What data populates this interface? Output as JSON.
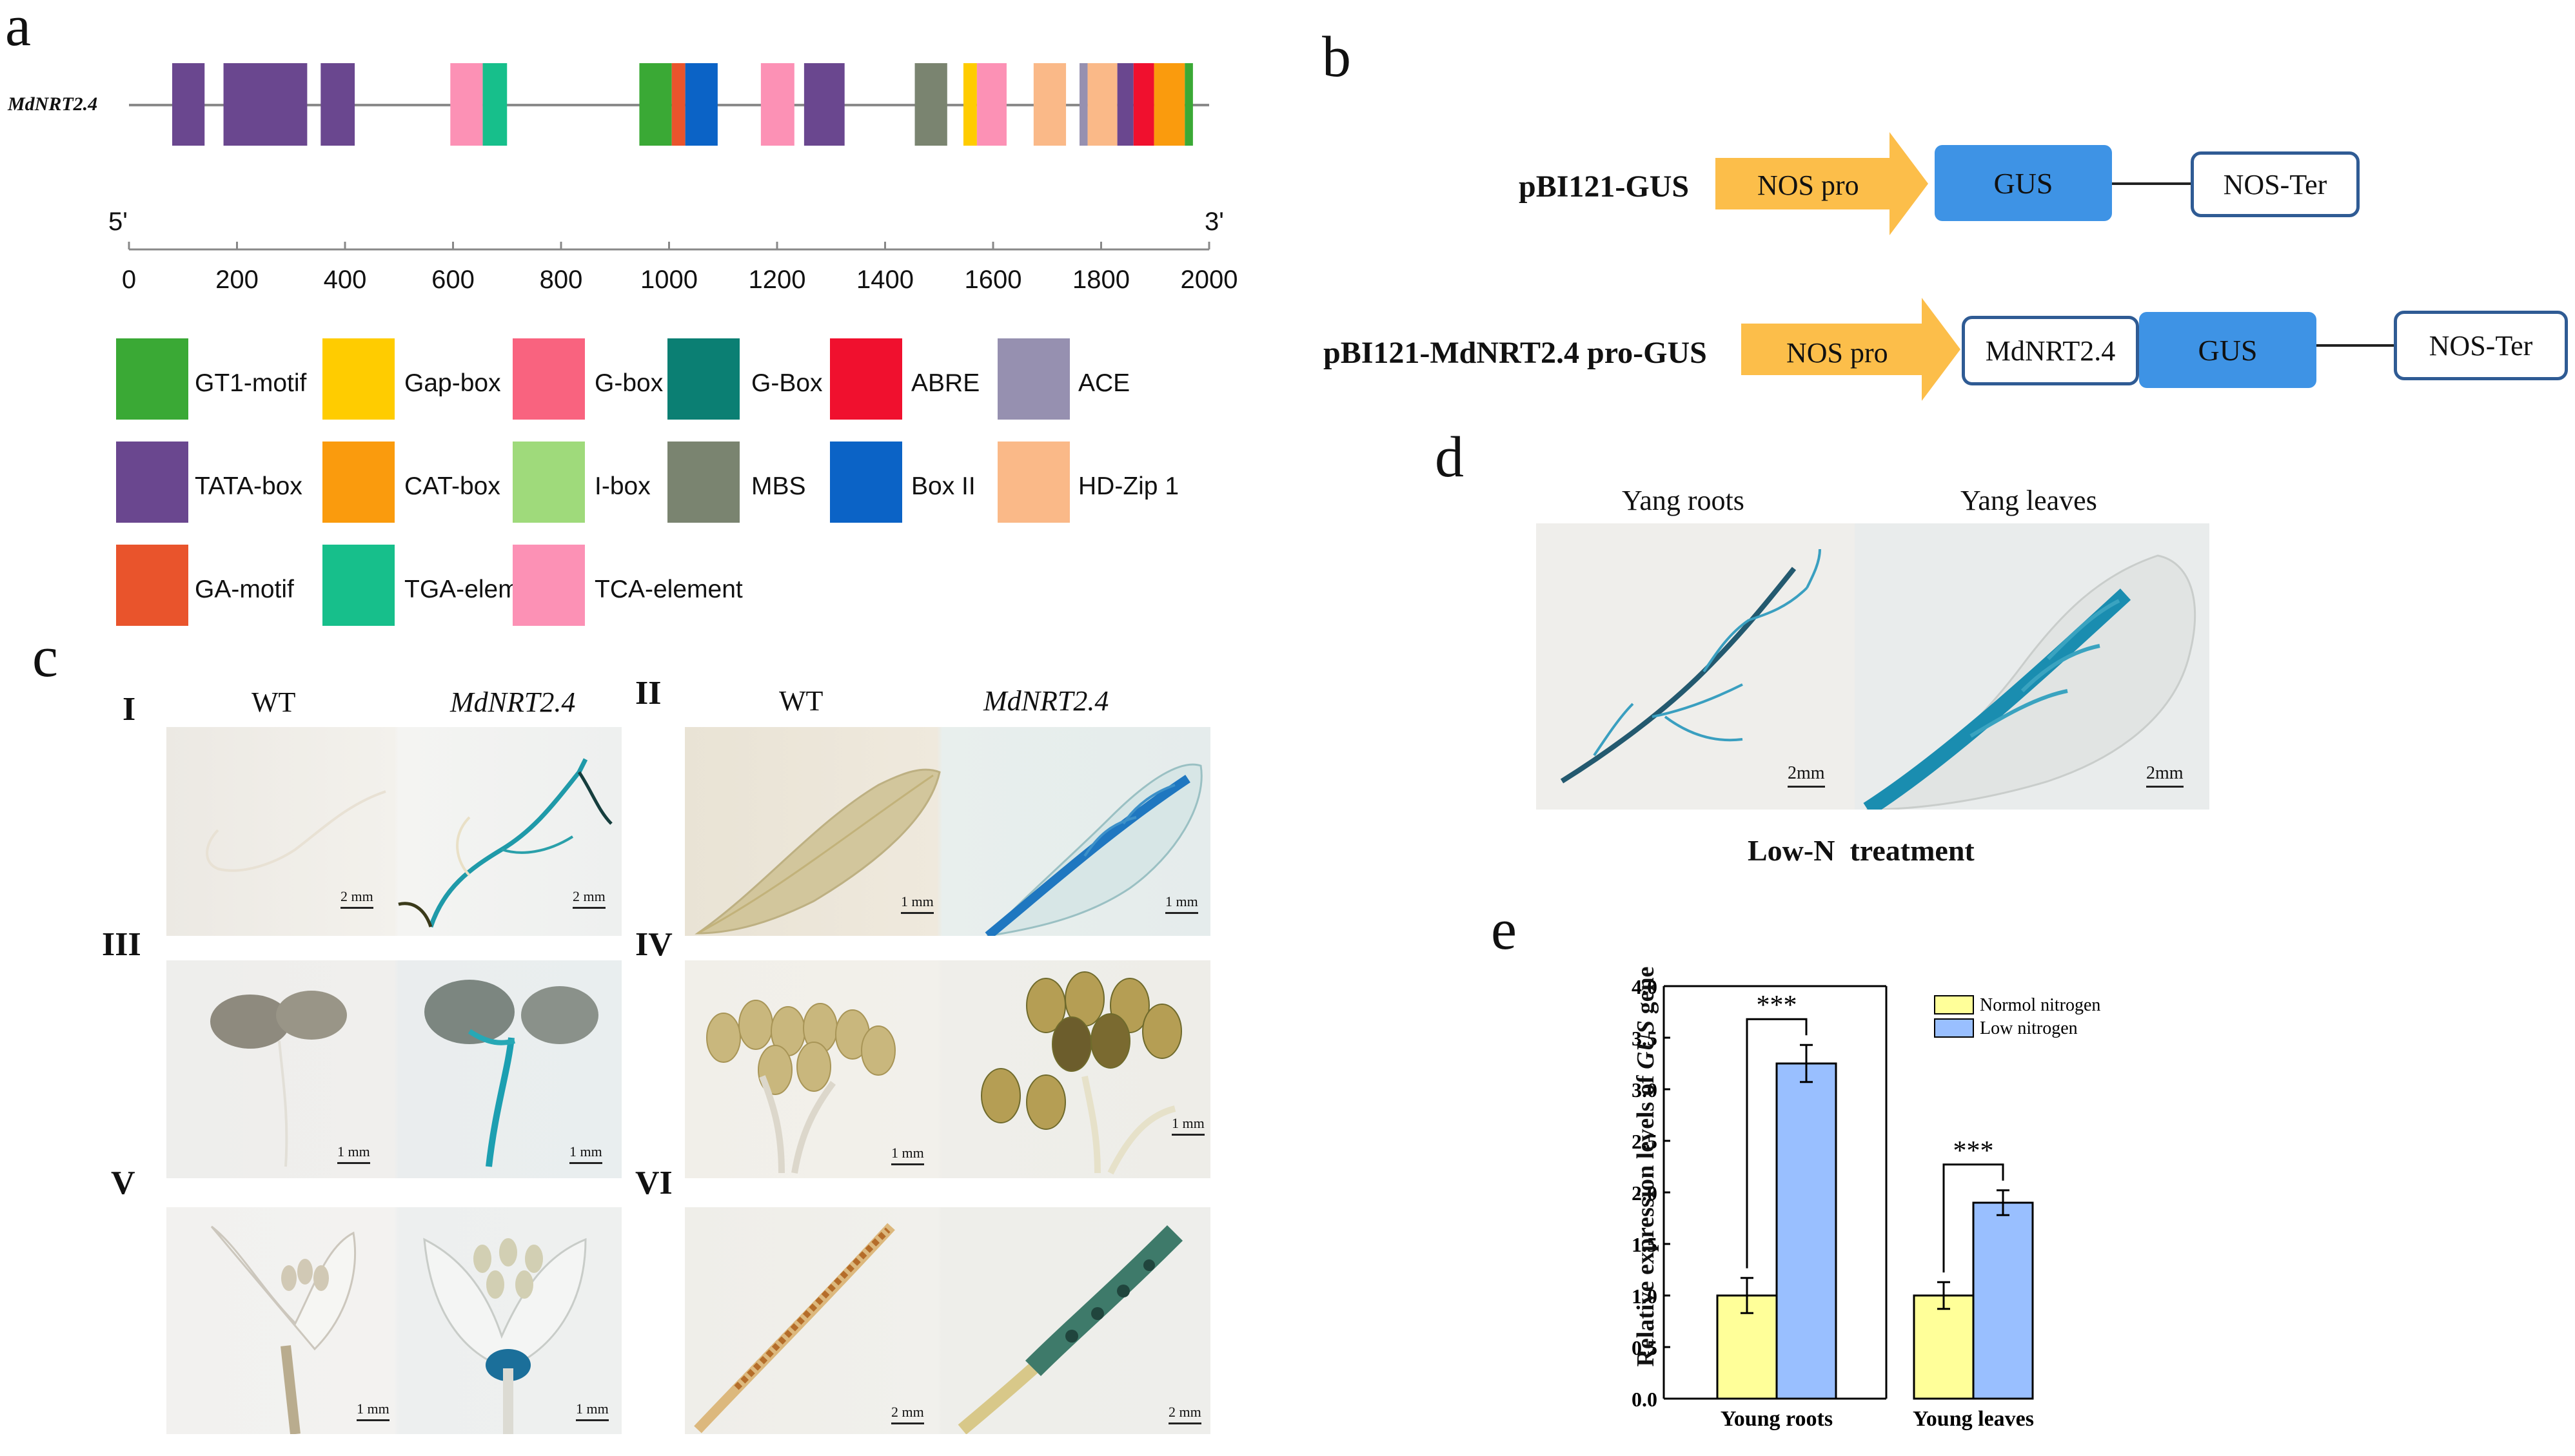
{
  "panel_a": {
    "label": "a",
    "gene_label": "MdNRT2.4",
    "five_prime": "5'",
    "three_prime": "3'",
    "axis_ticks": [
      "0",
      "200",
      "400",
      "600",
      "800",
      "1000",
      "1200",
      "1400",
      "1600",
      "1800",
      "2000"
    ],
    "legend": [
      {
        "name": "GT1-motif",
        "color": "#3aa935"
      },
      {
        "name": "Gap-box",
        "color": "#ffcc00"
      },
      {
        "name": "G-box",
        "color": "#f9637f"
      },
      {
        "name": "G-Box",
        "color": "#0b7f73"
      },
      {
        "name": "ABRE",
        "color": "#f0102e"
      },
      {
        "name": "ACE",
        "color": "#9690b0"
      },
      {
        "name": "TATA-box",
        "color": "#6a478f"
      },
      {
        "name": "CAT-box",
        "color": "#fa9b0d"
      },
      {
        "name": "I-box",
        "color": "#9fda7b"
      },
      {
        "name": "MBS",
        "color": "#7a8470"
      },
      {
        "name": "Box II",
        "color": "#0b63c6"
      },
      {
        "name": "HD-Zip 1",
        "color": "#fab988"
      },
      {
        "name": "GA-motif",
        "color": "#e9542c"
      },
      {
        "name": "TGA-element",
        "color": "#17bf8b"
      },
      {
        "name": "TCA-element",
        "color": "#fc91b5"
      }
    ],
    "elements": [
      {
        "start": 80,
        "end": 140,
        "color": "#6a478f"
      },
      {
        "start": 175,
        "end": 330,
        "color": "#6a478f"
      },
      {
        "start": 355,
        "end": 418,
        "color": "#6a478f"
      },
      {
        "start": 595,
        "end": 655,
        "color": "#fc91b5"
      },
      {
        "start": 655,
        "end": 700,
        "color": "#17bf8b"
      },
      {
        "start": 945,
        "end": 1005,
        "color": "#3aa935"
      },
      {
        "start": 1005,
        "end": 1030,
        "color": "#e9542c"
      },
      {
        "start": 1030,
        "end": 1090,
        "color": "#0b63c6"
      },
      {
        "start": 1170,
        "end": 1232,
        "color": "#fc91b5"
      },
      {
        "start": 1250,
        "end": 1325,
        "color": "#6a478f"
      },
      {
        "start": 1455,
        "end": 1515,
        "color": "#7a8470"
      },
      {
        "start": 1545,
        "end": 1570,
        "color": "#ffcc00"
      },
      {
        "start": 1570,
        "end": 1625,
        "color": "#fc91b5"
      },
      {
        "start": 1675,
        "end": 1735,
        "color": "#fab988"
      },
      {
        "start": 1760,
        "end": 1775,
        "color": "#9690b0"
      },
      {
        "start": 1775,
        "end": 1830,
        "color": "#fab988"
      },
      {
        "start": 1830,
        "end": 1860,
        "color": "#6a478f"
      },
      {
        "start": 1860,
        "end": 1898,
        "color": "#f0102e"
      },
      {
        "start": 1898,
        "end": 1955,
        "color": "#fa9b0d"
      },
      {
        "start": 1955,
        "end": 1970,
        "color": "#3aa935"
      }
    ]
  },
  "panel_b": {
    "label": "b",
    "construct1": {
      "name": "pBI121-GUS",
      "promoter": "NOS pro",
      "gene": "GUS",
      "terminator": "NOS-Ter"
    },
    "construct2": {
      "name": "pBI121-MdNRT2.4 pro-GUS",
      "promoter": "NOS pro",
      "insert": "MdNRT2.4",
      "gene": "GUS",
      "terminator": "NOS-Ter"
    }
  },
  "panel_c": {
    "label": "c",
    "header_wt": "WT",
    "header_gene": "MdNRT2.4",
    "panels": [
      {
        "roman": "I",
        "scale_wt": "2 mm",
        "scale_tg": "2 mm"
      },
      {
        "roman": "II",
        "scale_wt": "1 mm",
        "scale_tg": "1 mm"
      },
      {
        "roman": "III",
        "scale_wt": "1 mm",
        "scale_tg": "1 mm"
      },
      {
        "roman": "IV",
        "scale_wt": "1 mm",
        "scale_tg": "1 mm"
      },
      {
        "roman": "V",
        "scale_wt": "1 mm",
        "scale_tg": "1 mm"
      },
      {
        "roman": "VI",
        "scale_wt": "2 mm",
        "scale_tg": "2 mm"
      }
    ]
  },
  "panel_d": {
    "label": "d",
    "left_title": "Yang roots",
    "right_title": "Yang leaves",
    "scale_left": "2mm",
    "scale_right": "2mm",
    "caption": "Low-N  treatment"
  },
  "panel_e": {
    "label": "e",
    "sig1": "***",
    "sig2": "***"
  },
  "chart_data": {
    "type": "bar",
    "title": "",
    "categories": [
      "Young roots",
      "Young leaves"
    ],
    "series": [
      {
        "name": "Normol nitrogen",
        "color": "#ffff99",
        "values": [
          1.0,
          1.0
        ],
        "errors": [
          0.17,
          0.13
        ]
      },
      {
        "name": "Low nitrogen",
        "color": "#99bfff",
        "values": [
          3.25,
          1.9
        ],
        "errors": [
          0.18,
          0.12
        ]
      }
    ],
    "ylabel_prefix": "Relative expression levels of ",
    "ylabel_gene": "GUS",
    "ylabel_suffix": " gene",
    "xlabel": "",
    "ylim": [
      0,
      4.0
    ],
    "yticks": [
      "0.0",
      "0.5",
      "1.0",
      "1.5",
      "2.0",
      "2.5",
      "3.0",
      "3.5",
      "4.0"
    ],
    "significance": [
      "***",
      "***"
    ],
    "legend_position": "top-right"
  }
}
